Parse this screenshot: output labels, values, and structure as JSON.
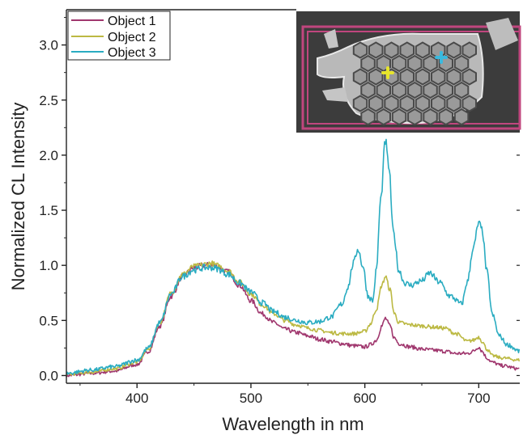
{
  "chart_data": {
    "type": "line",
    "title": "",
    "xlabel": "Wavelength in nm",
    "ylabel": "Normalized CL Intensity",
    "xlim": [
      338,
      736
    ],
    "ylim": [
      -0.07,
      3.32
    ],
    "xticks": [
      400,
      500,
      600,
      700
    ],
    "yticks": [
      0.0,
      0.5,
      1.0,
      1.5,
      2.0,
      2.5,
      3.0
    ],
    "xtick_labels": [
      "400",
      "500",
      "600",
      "700"
    ],
    "ytick_labels": [
      "0.0",
      "0.5",
      "1.0",
      "1.5",
      "2.0",
      "2.5",
      "3.0"
    ],
    "grid": false,
    "legend_position": "top-left",
    "series": [
      {
        "name": "Object 1",
        "color": "#a0376e",
        "noise": 0.025,
        "x": [
          338,
          360,
          380,
          400,
          410,
          420,
          430,
          440,
          450,
          460,
          465,
          470,
          480,
          490,
          500,
          510,
          520,
          530,
          540,
          550,
          560,
          570,
          580,
          590,
          600,
          605,
          610,
          615,
          618,
          622,
          626,
          630,
          640,
          650,
          660,
          670,
          680,
          690,
          695,
          700,
          703,
          707,
          712,
          720,
          736
        ],
        "y": [
          0.0,
          0.02,
          0.04,
          0.1,
          0.22,
          0.45,
          0.72,
          0.9,
          0.98,
          1.0,
          1.0,
          0.99,
          0.94,
          0.82,
          0.68,
          0.56,
          0.48,
          0.42,
          0.39,
          0.36,
          0.33,
          0.31,
          0.29,
          0.27,
          0.26,
          0.28,
          0.32,
          0.45,
          0.52,
          0.45,
          0.34,
          0.29,
          0.26,
          0.24,
          0.23,
          0.22,
          0.2,
          0.2,
          0.22,
          0.26,
          0.22,
          0.16,
          0.12,
          0.09,
          0.06
        ]
      },
      {
        "name": "Object 2",
        "color": "#bcb943",
        "noise": 0.022,
        "x": [
          338,
          360,
          380,
          400,
          410,
          420,
          430,
          440,
          450,
          460,
          465,
          470,
          480,
          490,
          500,
          510,
          520,
          530,
          540,
          550,
          560,
          570,
          580,
          590,
          600,
          605,
          610,
          615,
          618,
          622,
          626,
          630,
          640,
          650,
          660,
          670,
          680,
          690,
          695,
          700,
          703,
          707,
          712,
          720,
          736
        ],
        "y": [
          0.01,
          0.03,
          0.06,
          0.12,
          0.24,
          0.48,
          0.75,
          0.92,
          0.99,
          1.01,
          1.02,
          1.0,
          0.95,
          0.85,
          0.74,
          0.64,
          0.56,
          0.5,
          0.46,
          0.43,
          0.41,
          0.39,
          0.38,
          0.38,
          0.4,
          0.47,
          0.6,
          0.82,
          0.9,
          0.78,
          0.56,
          0.48,
          0.46,
          0.45,
          0.44,
          0.43,
          0.38,
          0.31,
          0.32,
          0.35,
          0.31,
          0.24,
          0.18,
          0.16,
          0.14
        ]
      },
      {
        "name": "Object 3",
        "color": "#2aacc1",
        "noise": 0.028,
        "x": [
          338,
          360,
          380,
          400,
          410,
          420,
          430,
          440,
          450,
          460,
          465,
          470,
          480,
          490,
          500,
          510,
          520,
          530,
          540,
          550,
          560,
          570,
          580,
          585,
          590,
          594,
          598,
          603,
          607,
          610,
          614,
          618,
          621,
          625,
          630,
          635,
          640,
          650,
          657,
          665,
          675,
          685,
          690,
          695,
          700,
          703,
          707,
          712,
          718,
          725,
          736
        ],
        "y": [
          0.02,
          0.05,
          0.08,
          0.14,
          0.25,
          0.48,
          0.74,
          0.9,
          0.96,
          0.98,
          0.98,
          0.97,
          0.92,
          0.84,
          0.76,
          0.66,
          0.58,
          0.53,
          0.5,
          0.48,
          0.49,
          0.53,
          0.65,
          0.8,
          1.02,
          1.15,
          1.0,
          0.72,
          0.68,
          0.95,
          1.6,
          2.13,
          1.9,
          1.3,
          0.95,
          0.84,
          0.82,
          0.86,
          0.93,
          0.85,
          0.72,
          0.65,
          0.85,
          1.15,
          1.38,
          1.32,
          0.95,
          0.55,
          0.36,
          0.28,
          0.22
        ]
      }
    ]
  },
  "legend": {
    "items": [
      {
        "label": "Object 1",
        "color": "#a0376e"
      },
      {
        "label": "Object 2",
        "color": "#bcb943"
      },
      {
        "label": "Object 3",
        "color": "#2aacc1"
      }
    ]
  },
  "inset": {
    "border_color": "#c0467e",
    "background": "#3c3c3c",
    "markers": [
      {
        "color": "#e6e42c",
        "shape": "cross"
      },
      {
        "color": "#3ab9de",
        "shape": "cross"
      }
    ]
  }
}
